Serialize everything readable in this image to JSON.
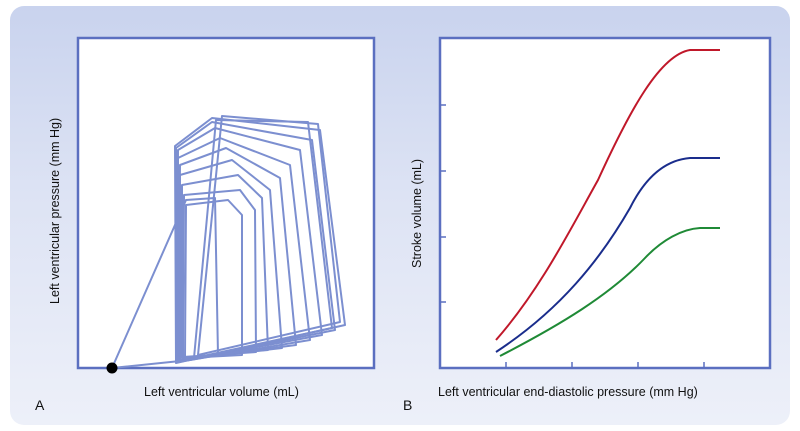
{
  "panels": [
    {
      "letter": "A",
      "xlabel": "Left ventricular volume (mL)",
      "ylabel": "Left ventricular pressure (mm Hg)",
      "type": "pressure-volume loops (unscaled)"
    },
    {
      "letter": "B",
      "xlabel": "Left ventricular end-diastolic pressure (mm Hg)",
      "ylabel": "Stroke volume (mL)",
      "type": "ventricular function curves (unscaled)"
    }
  ],
  "colors": {
    "background_top": "#c9d3ee",
    "axes": "#5b6fc0",
    "loops": "#7c8fd0",
    "curve_top": "#c0182a",
    "curve_middle": "#1a2d8c",
    "curve_bottom": "#1f8a36",
    "origin_dot": "#000000"
  }
}
